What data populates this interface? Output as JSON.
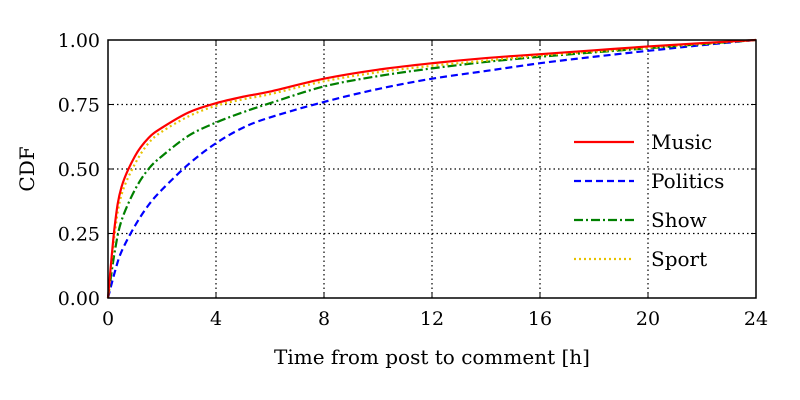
{
  "chart_data": {
    "type": "line",
    "xlabel": "Time from post to comment [h]",
    "ylabel": "CDF",
    "xlim": [
      0,
      24
    ],
    "ylim": [
      0,
      1
    ],
    "xticks": [
      "0",
      "4",
      "8",
      "12",
      "16",
      "20",
      "24"
    ],
    "yticks": [
      "0.00",
      "0.25",
      "0.50",
      "0.75",
      "1.00"
    ],
    "grid": true,
    "legend_position": "right",
    "x": [
      0,
      0.25,
      0.5,
      1,
      1.5,
      2,
      3,
      4,
      5,
      6,
      8,
      10,
      12,
      14,
      16,
      18,
      20,
      22,
      24
    ],
    "series": [
      {
        "name": "Music",
        "color": "#ff0000",
        "style": "solid",
        "values": [
          0.0,
          0.28,
          0.43,
          0.55,
          0.62,
          0.66,
          0.72,
          0.755,
          0.78,
          0.8,
          0.85,
          0.885,
          0.91,
          0.93,
          0.945,
          0.96,
          0.975,
          0.988,
          1.0
        ]
      },
      {
        "name": "Politics",
        "color": "#0000ff",
        "style": "dashed",
        "values": [
          0.0,
          0.1,
          0.18,
          0.28,
          0.36,
          0.42,
          0.52,
          0.6,
          0.66,
          0.7,
          0.76,
          0.81,
          0.85,
          0.88,
          0.91,
          0.935,
          0.958,
          0.98,
          1.0
        ]
      },
      {
        "name": "Show",
        "color": "#008000",
        "style": "dashdot",
        "values": [
          0.0,
          0.18,
          0.3,
          0.42,
          0.5,
          0.55,
          0.63,
          0.68,
          0.72,
          0.755,
          0.82,
          0.86,
          0.89,
          0.915,
          0.935,
          0.952,
          0.968,
          0.984,
          1.0
        ]
      },
      {
        "name": "Sport",
        "color": "#e6c200",
        "style": "dotted",
        "values": [
          0.0,
          0.25,
          0.4,
          0.52,
          0.6,
          0.645,
          0.705,
          0.745,
          0.77,
          0.79,
          0.84,
          0.875,
          0.9,
          0.92,
          0.94,
          0.955,
          0.97,
          0.985,
          1.0
        ]
      }
    ]
  }
}
